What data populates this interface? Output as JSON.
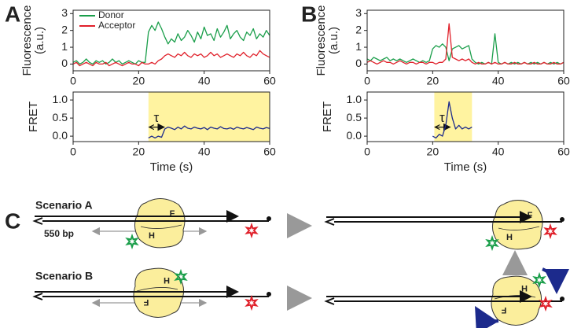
{
  "panel_labels": [
    "A",
    "B",
    "C"
  ],
  "chart_data": [
    {
      "type": "line",
      "ylabel": [
        "Fluorescence",
        "(a.u.)"
      ],
      "x": [
        0,
        1,
        2,
        3,
        4,
        5,
        6,
        7,
        8,
        9,
        10,
        11,
        12,
        13,
        14,
        15,
        16,
        17,
        18,
        19,
        20,
        21,
        22,
        23,
        24,
        25,
        26,
        27,
        28,
        29,
        30,
        31,
        32,
        33,
        34,
        35,
        36,
        37,
        38,
        39,
        40,
        41,
        42,
        43,
        44,
        45,
        46,
        47,
        48,
        49,
        50,
        51,
        52,
        53,
        54,
        55,
        56,
        57,
        58,
        59,
        60
      ],
      "series": [
        {
          "name": "Donor",
          "color": "#1a9e4a",
          "values": [
            0.1,
            0.2,
            0.0,
            0.1,
            0.3,
            0.1,
            0.0,
            0.2,
            0.1,
            0.2,
            0.0,
            0.1,
            0.3,
            0.1,
            0.2,
            0.0,
            0.1,
            0.2,
            0.1,
            0.0,
            0.2,
            0.1,
            0.1,
            1.9,
            2.3,
            2.0,
            2.5,
            2.1,
            1.6,
            1.2,
            1.5,
            1.3,
            1.8,
            1.4,
            1.6,
            2.0,
            1.7,
            1.3,
            1.9,
            1.5,
            2.2,
            1.7,
            1.8,
            1.4,
            2.1,
            1.6,
            1.9,
            2.3,
            1.5,
            1.8,
            2.0,
            1.6,
            1.4,
            1.9,
            1.7,
            2.1,
            1.5,
            1.8,
            1.6,
            2.0,
            1.7
          ]
        },
        {
          "name": "Acceptor",
          "color": "#e0202a",
          "values": [
            0.0,
            0.1,
            -0.1,
            0.0,
            0.1,
            0.0,
            -0.1,
            0.1,
            0.0,
            0.0,
            0.1,
            -0.1,
            0.0,
            0.1,
            0.0,
            -0.1,
            0.0,
            0.1,
            0.0,
            0.0,
            -0.1,
            0.1,
            0.0,
            0.0,
            0.1,
            0.0,
            0.2,
            0.3,
            0.5,
            0.6,
            0.5,
            0.4,
            0.6,
            0.5,
            0.7,
            0.5,
            0.4,
            0.6,
            0.5,
            0.6,
            0.4,
            0.5,
            0.7,
            0.5,
            0.6,
            0.4,
            0.5,
            0.6,
            0.5,
            0.4,
            0.6,
            0.5,
            0.7,
            0.5,
            0.4,
            0.6,
            0.5,
            0.8,
            0.6,
            0.5,
            0.4
          ]
        }
      ],
      "xlim": [
        0,
        60
      ],
      "xticks": [
        0,
        20,
        40,
        60
      ],
      "ylim": [
        -0.4,
        3.2
      ],
      "yticks": [
        0,
        1,
        2,
        3
      ],
      "legend": "upper left"
    },
    {
      "type": "line",
      "ylabel": [
        "FRET"
      ],
      "xlabel": "Time (s)",
      "annotation": "τ",
      "shade": [
        23,
        60
      ],
      "shade_color": "#fff3a0",
      "x": [
        0,
        1,
        2,
        3,
        4,
        5,
        6,
        7,
        8,
        9,
        10,
        11,
        12,
        13,
        14,
        15,
        16,
        17,
        18,
        19,
        20,
        21,
        22,
        23,
        24,
        25,
        26,
        27,
        28,
        29,
        30,
        31,
        32,
        33,
        34,
        35,
        36,
        37,
        38,
        39,
        40,
        41,
        42,
        43,
        44,
        45,
        46,
        47,
        48,
        49,
        50,
        51,
        52,
        53,
        54,
        55,
        56,
        57,
        58,
        59,
        60
      ],
      "series": [
        {
          "color": "#1c2a8c",
          "values": [
            null,
            null,
            null,
            null,
            null,
            null,
            null,
            null,
            null,
            null,
            null,
            null,
            null,
            null,
            null,
            null,
            null,
            null,
            null,
            null,
            null,
            null,
            null,
            -0.05,
            0.0,
            -0.05,
            0.0,
            -0.03,
            0.2,
            0.25,
            0.22,
            0.18,
            0.25,
            0.2,
            0.28,
            0.22,
            0.2,
            0.25,
            0.22,
            0.2,
            0.24,
            0.18,
            0.25,
            0.22,
            0.2,
            0.26,
            0.21,
            0.2,
            0.23,
            0.19,
            0.25,
            0.22,
            0.2,
            0.24,
            0.21,
            0.18,
            0.25,
            0.22,
            0.2,
            0.24,
            0.21
          ]
        }
      ],
      "xlim": [
        0,
        60
      ],
      "xticks": [
        0,
        20,
        40,
        60
      ],
      "ylim": [
        -0.15,
        1.22
      ],
      "yticks": [
        {
          "value": 0,
          "label": "0.0"
        },
        0.5,
        {
          "value": 1,
          "label": "1.0"
        }
      ]
    },
    {
      "type": "line",
      "ylabel": [
        "Fluorescence",
        "(a.u.)"
      ],
      "x": [
        0,
        1,
        2,
        3,
        4,
        5,
        6,
        7,
        8,
        9,
        10,
        11,
        12,
        13,
        14,
        15,
        16,
        17,
        18,
        19,
        20,
        21,
        22,
        23,
        24,
        25,
        26,
        27,
        28,
        29,
        30,
        31,
        32,
        33,
        34,
        35,
        36,
        37,
        38,
        39,
        40,
        41,
        42,
        43,
        44,
        45,
        46,
        47,
        48,
        49,
        50,
        51,
        52,
        53,
        54,
        55,
        56,
        57,
        58,
        59,
        60
      ],
      "series": [
        {
          "name": "Donor",
          "color": "#1a9e4a",
          "values": [
            0.3,
            0.2,
            0.4,
            0.3,
            0.2,
            0.3,
            0.4,
            0.2,
            0.3,
            0.2,
            0.3,
            0.2,
            0.1,
            0.2,
            0.3,
            0.2,
            0.1,
            0.2,
            0.1,
            0.2,
            0.9,
            1.1,
            1.0,
            1.2,
            1.0,
            0.2,
            0.9,
            1.0,
            1.1,
            0.9,
            1.0,
            1.1,
            0.3,
            0.1,
            0.0,
            0.1,
            0.0,
            0.1,
            0.0,
            1.8,
            0.1,
            0.0,
            0.1,
            0.0,
            0.1,
            0.0,
            0.1,
            0.0,
            0.1,
            0.0,
            0.1,
            0.0,
            0.1,
            0.0,
            0.1,
            0.0,
            0.1,
            0.0,
            0.1,
            0.0,
            0.1
          ]
        },
        {
          "name": "Acceptor",
          "color": "#e0202a",
          "values": [
            0.1,
            0.2,
            0.1,
            0.0,
            0.1,
            0.2,
            0.1,
            0.1,
            0.0,
            0.1,
            0.2,
            0.1,
            0.0,
            0.1,
            0.1,
            0.0,
            0.1,
            0.1,
            0.0,
            0.1,
            0.1,
            0.0,
            0.1,
            0.1,
            0.3,
            2.4,
            0.4,
            0.3,
            0.2,
            0.3,
            0.2,
            0.3,
            0.1,
            0.0,
            0.1,
            0.0,
            0.0,
            0.1,
            0.0,
            0.1,
            0.0,
            0.0,
            0.1,
            0.0,
            0.0,
            0.1,
            0.0,
            0.0,
            0.1,
            0.0,
            0.0,
            0.1,
            0.0,
            0.0,
            0.1,
            0.0,
            0.0,
            0.1,
            0.0,
            0.0,
            0.1
          ]
        }
      ],
      "xlim": [
        0,
        60
      ],
      "xticks": [
        0,
        20,
        40,
        60
      ],
      "ylim": [
        -0.4,
        3.2
      ],
      "yticks": [
        0,
        1,
        2,
        3
      ]
    },
    {
      "type": "line",
      "ylabel": [
        "FRET"
      ],
      "xlabel": "Time (s)",
      "annotation": "τ",
      "shade": [
        20.5,
        32
      ],
      "shade_color": "#fff3a0",
      "x": [
        0,
        1,
        2,
        3,
        4,
        5,
        6,
        7,
        8,
        9,
        10,
        11,
        12,
        13,
        14,
        15,
        16,
        17,
        18,
        19,
        20,
        21,
        22,
        23,
        24,
        25,
        26,
        27,
        28,
        29,
        30,
        31,
        32,
        33,
        34,
        35,
        36,
        37,
        38,
        39,
        40,
        41,
        42,
        43,
        44,
        45,
        46,
        47,
        48,
        49,
        50,
        51,
        52,
        53,
        54,
        55,
        56,
        57,
        58,
        59,
        60
      ],
      "series": [
        {
          "color": "#1c2a8c",
          "values": [
            null,
            null,
            null,
            null,
            null,
            null,
            null,
            null,
            null,
            null,
            null,
            null,
            null,
            null,
            null,
            null,
            null,
            null,
            null,
            null,
            0.0,
            -0.05,
            0.05,
            0.0,
            0.3,
            0.95,
            0.5,
            0.2,
            0.3,
            0.2,
            0.25,
            0.2,
            0.25,
            null,
            null,
            null,
            null,
            null,
            null,
            null,
            null,
            null,
            null,
            null,
            null,
            null,
            null,
            null,
            null,
            null,
            null,
            null,
            null,
            null,
            null,
            null,
            null,
            null,
            null,
            null,
            null
          ]
        }
      ],
      "xlim": [
        0,
        60
      ],
      "xticks": [
        0,
        20,
        40,
        60
      ],
      "ylim": [
        -0.15,
        1.22
      ],
      "yticks": [
        {
          "value": 0,
          "label": "0.0"
        },
        0.5,
        {
          "value": 1,
          "label": "1.0"
        }
      ]
    }
  ],
  "diagram": {
    "scenarios": [
      "Scenario A",
      "Scenario B"
    ],
    "length_label": "550 bp",
    "domain_labels": [
      "F",
      "H"
    ]
  }
}
